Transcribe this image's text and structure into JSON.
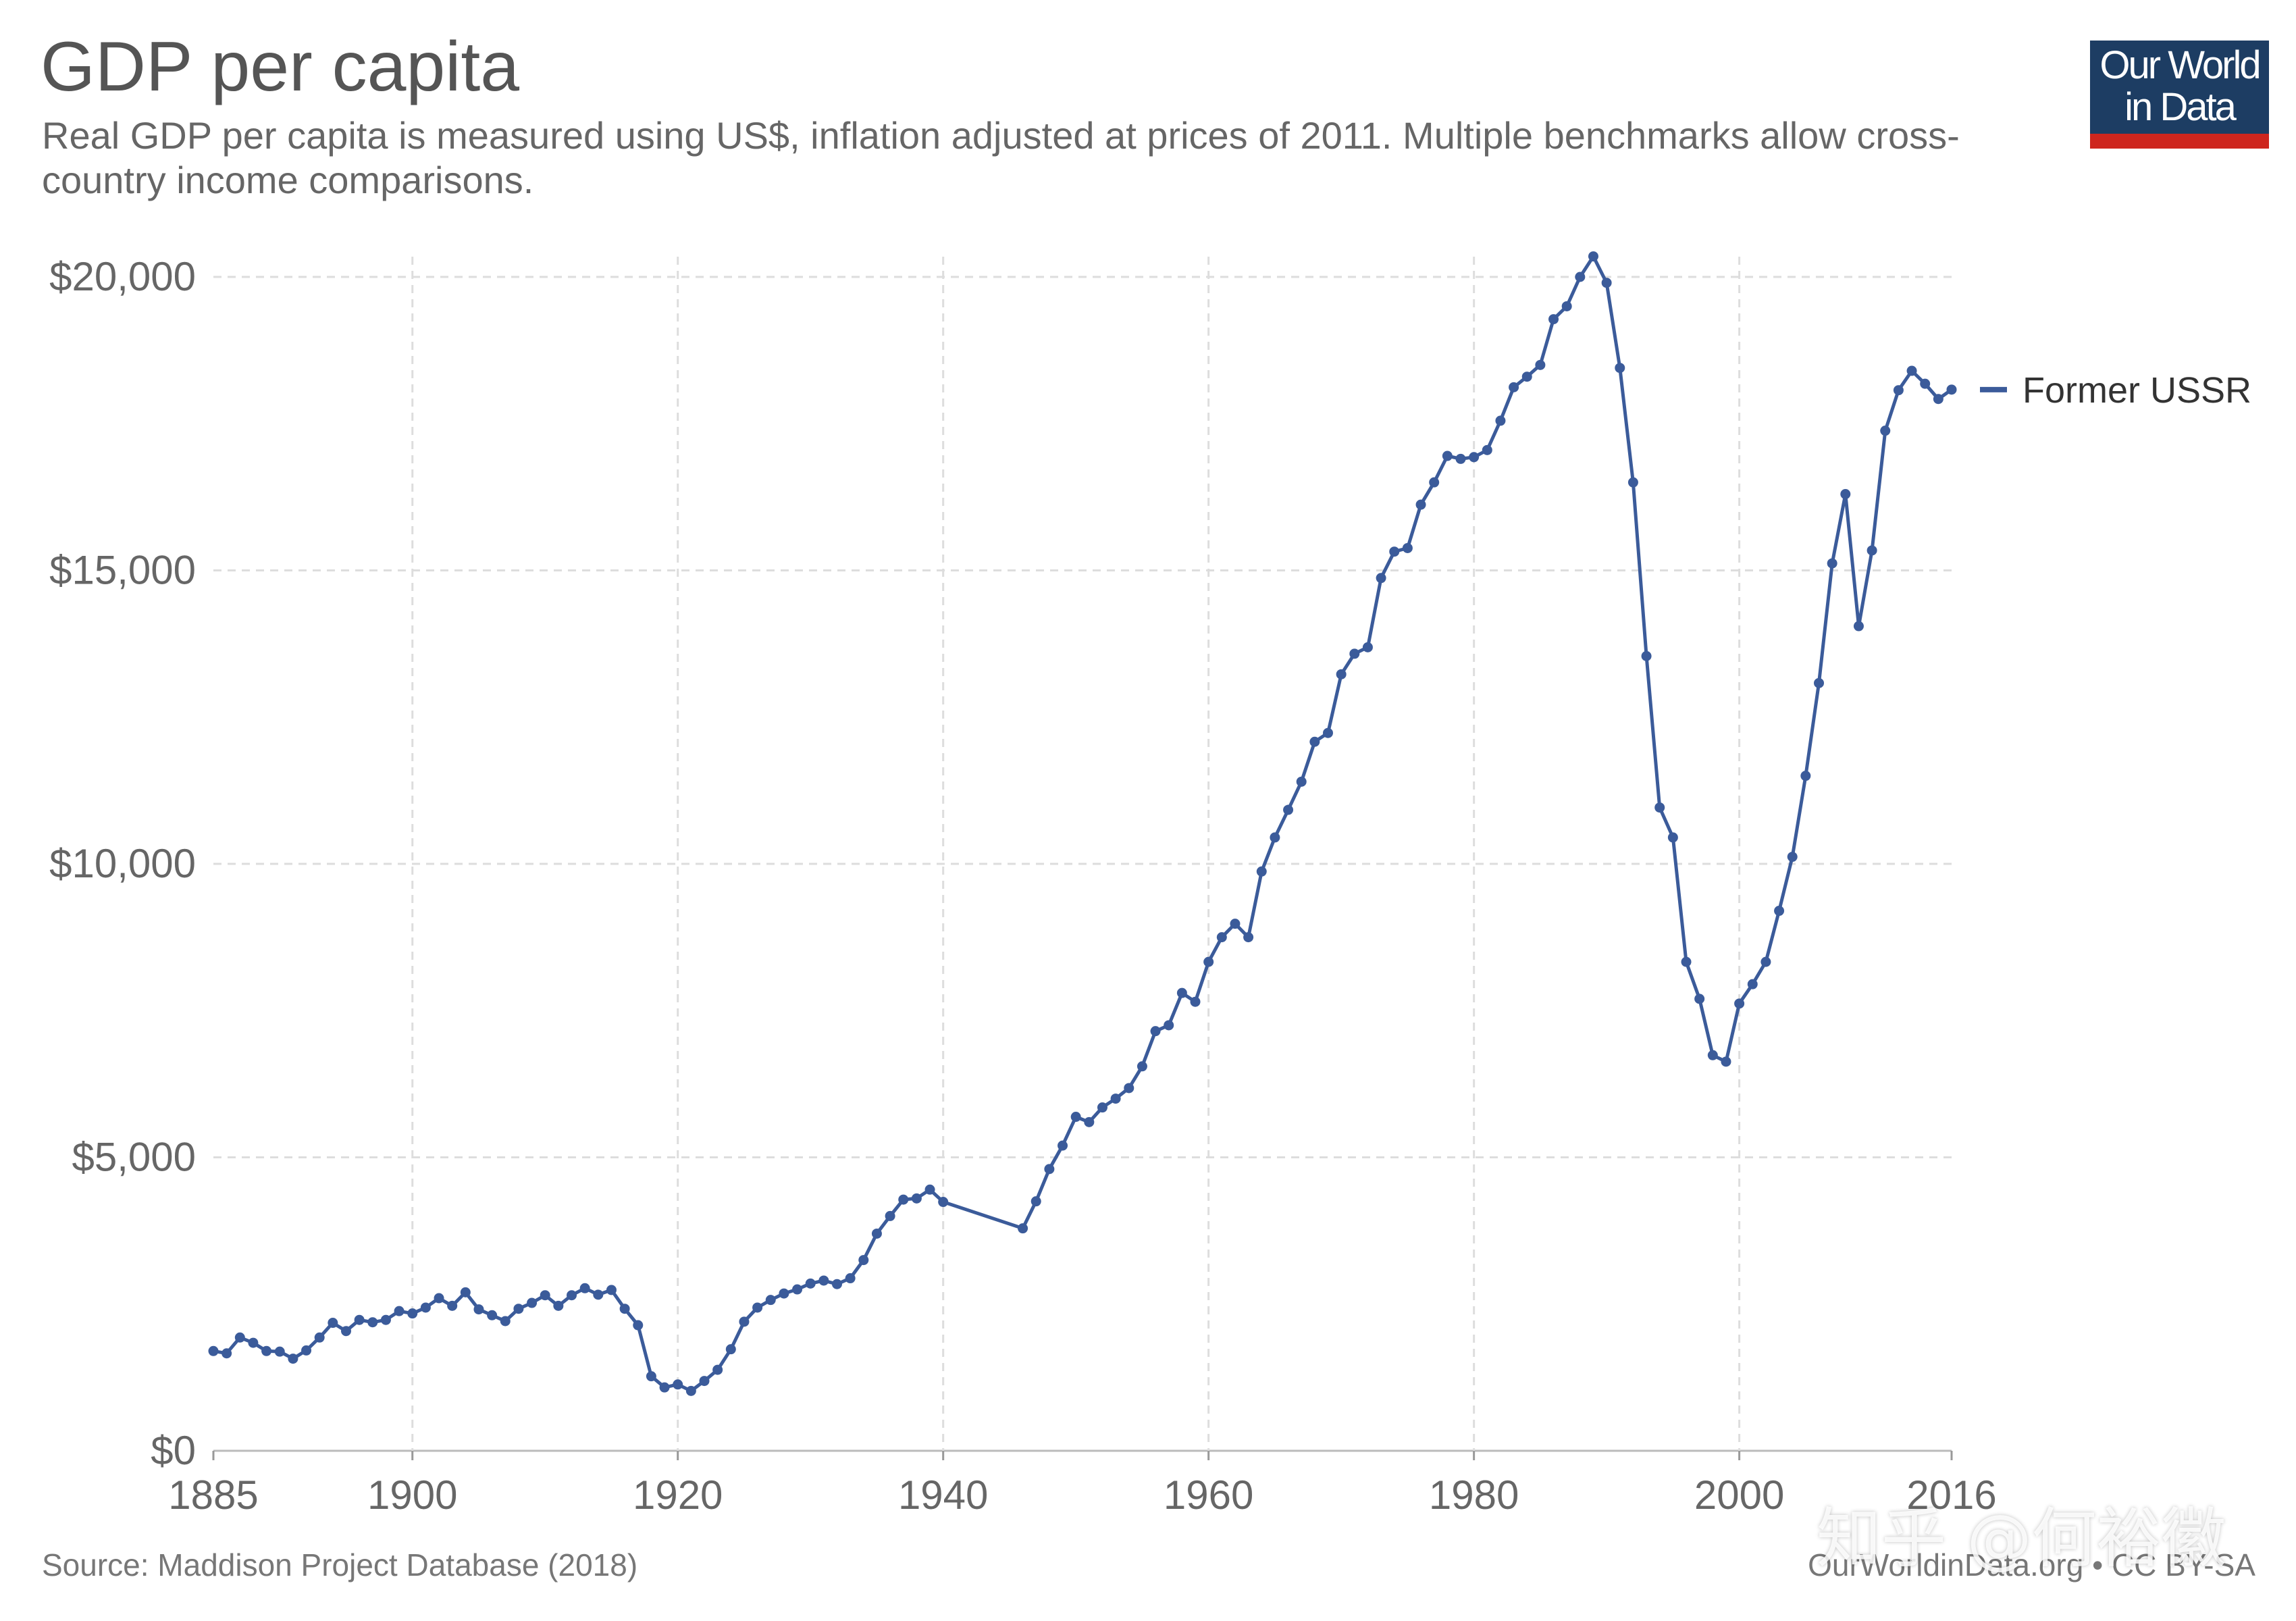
{
  "title": "GDP per capita",
  "subtitle": "Real GDP per capita is measured using US$, inflation adjusted at prices of 2011. Multiple benchmarks allow cross-country income comparisons.",
  "logo": "Our World\nin Data",
  "source": "Source: Maddison Project Database (2018)",
  "credit": "OurWorldinData.org • CC BY-SA",
  "watermark": "知乎 @何裕徽",
  "colors": {
    "series": "#3b5b9a",
    "grid": "#dddddd",
    "text": "#555555",
    "logo_bg": "#1d3d63",
    "logo_bar": "#ce261e"
  },
  "chart_data": {
    "type": "line",
    "xlim": [
      1885,
      2016
    ],
    "ylim": [
      0,
      20000
    ],
    "xticks": [
      1885,
      1900,
      1920,
      1940,
      1960,
      1980,
      2000,
      2016
    ],
    "yticks": [
      0,
      5000,
      10000,
      15000,
      20000
    ],
    "ytick_labels": [
      "$0",
      "$5,000",
      "$10,000",
      "$15,000",
      "$20,000"
    ],
    "grid": true,
    "legend_placement": "right",
    "series": [
      {
        "name": "Former USSR",
        "color": "#3b5b9a",
        "points": [
          [
            1885,
            1700
          ],
          [
            1886,
            1660
          ],
          [
            1887,
            1930
          ],
          [
            1888,
            1840
          ],
          [
            1889,
            1700
          ],
          [
            1890,
            1690
          ],
          [
            1891,
            1570
          ],
          [
            1892,
            1710
          ],
          [
            1893,
            1930
          ],
          [
            1894,
            2180
          ],
          [
            1895,
            2040
          ],
          [
            1896,
            2230
          ],
          [
            1897,
            2190
          ],
          [
            1898,
            2230
          ],
          [
            1899,
            2380
          ],
          [
            1900,
            2340
          ],
          [
            1901,
            2440
          ],
          [
            1902,
            2600
          ],
          [
            1903,
            2470
          ],
          [
            1904,
            2700
          ],
          [
            1905,
            2410
          ],
          [
            1906,
            2310
          ],
          [
            1907,
            2210
          ],
          [
            1908,
            2420
          ],
          [
            1909,
            2520
          ],
          [
            1910,
            2650
          ],
          [
            1911,
            2470
          ],
          [
            1912,
            2650
          ],
          [
            1913,
            2770
          ],
          [
            1914,
            2660
          ],
          [
            1915,
            2740
          ],
          [
            1916,
            2420
          ],
          [
            1917,
            2140
          ],
          [
            1918,
            1270
          ],
          [
            1919,
            1080
          ],
          [
            1920,
            1130
          ],
          [
            1921,
            1020
          ],
          [
            1922,
            1190
          ],
          [
            1923,
            1380
          ],
          [
            1924,
            1730
          ],
          [
            1925,
            2200
          ],
          [
            1926,
            2440
          ],
          [
            1927,
            2570
          ],
          [
            1928,
            2680
          ],
          [
            1929,
            2750
          ],
          [
            1930,
            2850
          ],
          [
            1931,
            2900
          ],
          [
            1932,
            2840
          ],
          [
            1933,
            2940
          ],
          [
            1934,
            3250
          ],
          [
            1935,
            3700
          ],
          [
            1936,
            4000
          ],
          [
            1937,
            4280
          ],
          [
            1938,
            4300
          ],
          [
            1939,
            4450
          ],
          [
            1940,
            4240
          ],
          [
            1946,
            3790
          ],
          [
            1947,
            4250
          ],
          [
            1948,
            4800
          ],
          [
            1949,
            5200
          ],
          [
            1950,
            5690
          ],
          [
            1951,
            5600
          ],
          [
            1952,
            5850
          ],
          [
            1953,
            6000
          ],
          [
            1954,
            6180
          ],
          [
            1955,
            6550
          ],
          [
            1956,
            7150
          ],
          [
            1957,
            7250
          ],
          [
            1958,
            7800
          ],
          [
            1959,
            7650
          ],
          [
            1960,
            8330
          ],
          [
            1961,
            8750
          ],
          [
            1962,
            8980
          ],
          [
            1963,
            8750
          ],
          [
            1964,
            9870
          ],
          [
            1965,
            10450
          ],
          [
            1966,
            10920
          ],
          [
            1967,
            11400
          ],
          [
            1968,
            12080
          ],
          [
            1969,
            12230
          ],
          [
            1970,
            13230
          ],
          [
            1971,
            13580
          ],
          [
            1972,
            13690
          ],
          [
            1973,
            14870
          ],
          [
            1974,
            15320
          ],
          [
            1975,
            15380
          ],
          [
            1976,
            16120
          ],
          [
            1977,
            16500
          ],
          [
            1978,
            16950
          ],
          [
            1979,
            16900
          ],
          [
            1980,
            16930
          ],
          [
            1981,
            17050
          ],
          [
            1982,
            17550
          ],
          [
            1983,
            18120
          ],
          [
            1984,
            18300
          ],
          [
            1985,
            18500
          ],
          [
            1986,
            19280
          ],
          [
            1987,
            19500
          ],
          [
            1988,
            20000
          ],
          [
            1989,
            20350
          ],
          [
            1990,
            19900
          ],
          [
            1991,
            18450
          ],
          [
            1992,
            16500
          ],
          [
            1993,
            13540
          ],
          [
            1994,
            10960
          ],
          [
            1995,
            10450
          ],
          [
            1996,
            8330
          ],
          [
            1997,
            7700
          ],
          [
            1998,
            6740
          ],
          [
            1999,
            6630
          ],
          [
            2000,
            7620
          ],
          [
            2001,
            7950
          ],
          [
            2002,
            8330
          ],
          [
            2003,
            9200
          ],
          [
            2004,
            10120
          ],
          [
            2005,
            11500
          ],
          [
            2006,
            13080
          ],
          [
            2007,
            15120
          ],
          [
            2008,
            16300
          ],
          [
            2009,
            14050
          ],
          [
            2010,
            15340
          ],
          [
            2011,
            17380
          ],
          [
            2012,
            18070
          ],
          [
            2013,
            18400
          ],
          [
            2014,
            18180
          ],
          [
            2015,
            17920
          ],
          [
            2016,
            18080
          ]
        ]
      }
    ]
  }
}
